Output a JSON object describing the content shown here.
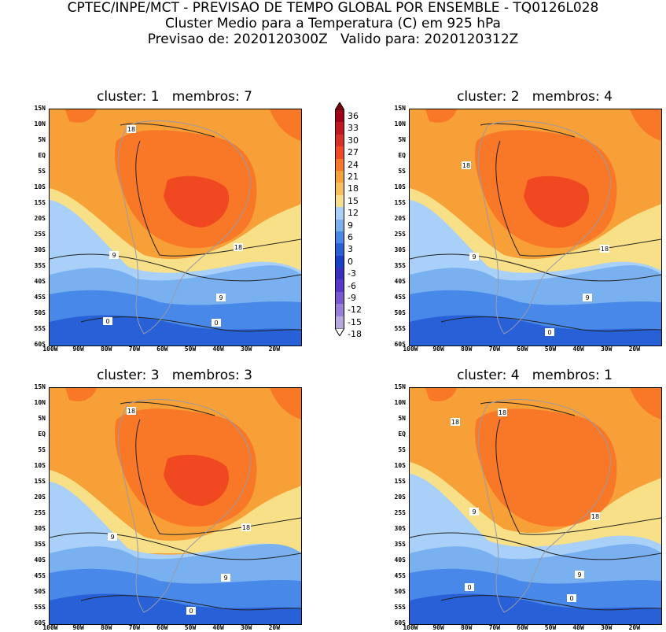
{
  "header": {
    "line1": "CPTEC/INPE/MCT - PREVISAO DE TEMPO GLOBAL POR ENSEMBLE - TQ0126L028",
    "line2": "Cluster Medio para a Temperatura (C) em 925 hPa",
    "line3": "Previsao de: 2020120300Z   Valido para: 2020120312Z"
  },
  "lat_labels": [
    "15N",
    "10N",
    "5N",
    "EQ",
    "5S",
    "10S",
    "15S",
    "20S",
    "25S",
    "30S",
    "35S",
    "40S",
    "45S",
    "50S",
    "55S",
    "60S"
  ],
  "lon_labels": [
    "100W",
    "90W",
    "80W",
    "70W",
    "60W",
    "50W",
    "40W",
    "30W",
    "20W"
  ],
  "panels": [
    {
      "title": "cluster: 1   membros: 7",
      "contours": [
        "18",
        "18",
        "9",
        "9",
        "0",
        "0"
      ]
    },
    {
      "title": "cluster: 2   membros: 4",
      "contours": [
        "18",
        "18",
        "9",
        "9",
        "0"
      ]
    },
    {
      "title": "cluster: 3   membros: 3",
      "contours": [
        "18",
        "18",
        "9",
        "9",
        "0"
      ]
    },
    {
      "title": "cluster: 4   membros: 1",
      "contours": [
        "18",
        "18",
        "18",
        "9",
        "9",
        "0",
        "0"
      ]
    }
  ],
  "colorbar": {
    "labels": [
      "36",
      "33",
      "30",
      "27",
      "24",
      "21",
      "18",
      "15",
      "12",
      "9",
      "6",
      "3",
      "0",
      "-3",
      "-6",
      "-9",
      "-12",
      "-15",
      "-18"
    ],
    "colors": [
      "#a00018",
      "#c01820",
      "#d83028",
      "#f04820",
      "#f87828",
      "#f8a038",
      "#f8c058",
      "#f8e088",
      "#a8d0f8",
      "#78b0f0",
      "#4888e8",
      "#2860d8",
      "#1840c8",
      "#3830c0",
      "#5838c8",
      "#7858d0",
      "#9880d8",
      "#b8a8e0"
    ]
  }
}
